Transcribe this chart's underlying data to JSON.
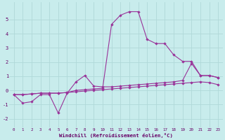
{
  "xlabel": "Windchill (Refroidissement éolien,°C)",
  "background_color": "#c8ecec",
  "grid_color": "#b0d8d8",
  "line_color": "#993399",
  "xlim": [
    -0.5,
    23.5
  ],
  "ylim": [
    -2.6,
    6.2
  ],
  "xticks": [
    0,
    1,
    2,
    3,
    4,
    5,
    6,
    7,
    8,
    9,
    10,
    11,
    12,
    13,
    14,
    15,
    16,
    17,
    18,
    19,
    20,
    21,
    22,
    23
  ],
  "yticks": [
    -2,
    -1,
    0,
    1,
    2,
    3,
    4,
    5
  ],
  "line1_x": [
    0,
    1,
    2,
    3,
    4,
    5,
    6,
    7,
    8,
    9,
    10,
    11,
    12,
    13,
    14,
    15,
    16,
    17,
    18,
    19,
    20,
    21,
    22,
    23
  ],
  "line1_y": [
    -0.3,
    -0.3,
    -0.25,
    -0.2,
    -0.2,
    -0.2,
    -0.15,
    -0.1,
    -0.05,
    0.0,
    0.05,
    0.1,
    0.15,
    0.2,
    0.25,
    0.3,
    0.35,
    0.4,
    0.45,
    0.5,
    0.55,
    0.6,
    0.55,
    0.4
  ],
  "line2_x": [
    0,
    1,
    2,
    3,
    4,
    5,
    6,
    7,
    8,
    9,
    10,
    11,
    12,
    13,
    14,
    15,
    16,
    17,
    18,
    19,
    20,
    21,
    22,
    23
  ],
  "line2_y": [
    -0.3,
    -0.9,
    -0.8,
    -0.3,
    -0.3,
    -1.6,
    -0.2,
    0.6,
    1.05,
    0.3,
    0.25,
    0.25,
    0.3,
    0.35,
    0.4,
    0.45,
    0.5,
    0.55,
    0.6,
    0.7,
    1.9,
    1.05,
    1.05,
    0.9
  ],
  "line3_x": [
    0,
    1,
    2,
    3,
    4,
    5,
    6,
    7,
    8,
    9,
    10,
    11,
    12,
    13,
    14,
    15,
    16,
    17,
    18,
    19,
    20,
    21,
    22,
    23
  ],
  "line3_y": [
    -0.3,
    -0.3,
    -0.25,
    -0.2,
    -0.2,
    -0.2,
    -0.15,
    0.0,
    0.05,
    0.1,
    0.15,
    4.65,
    5.3,
    5.55,
    5.55,
    3.6,
    3.3,
    3.3,
    2.5,
    2.05,
    2.05,
    1.05,
    1.05,
    0.9
  ]
}
